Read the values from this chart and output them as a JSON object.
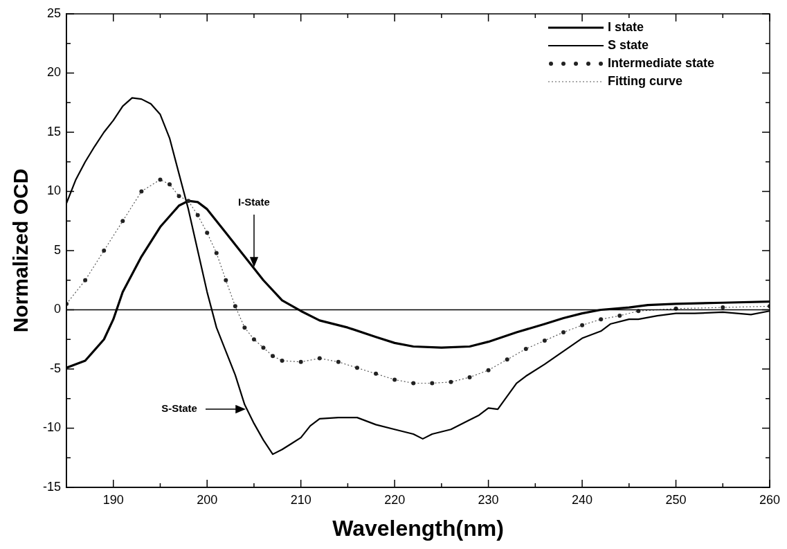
{
  "chart_data": {
    "type": "line",
    "xlabel": "Wavelength(nm)",
    "ylabel": "Normalized OCD",
    "xlim": [
      185,
      260
    ],
    "ylim": [
      -15,
      25
    ],
    "xticks": [
      {
        "value": 185,
        "label": null
      },
      190,
      {
        "value": 195,
        "label": null
      },
      200,
      {
        "value": 205,
        "label": null
      },
      210,
      {
        "value": 215,
        "label": null
      },
      220,
      {
        "value": 225,
        "label": null
      },
      230,
      {
        "value": 235,
        "label": null
      },
      240,
      {
        "value": 245,
        "label": null
      },
      250,
      {
        "value": 255,
        "label": null
      },
      260
    ],
    "yticks": [
      -15,
      {
        "value": -12.5,
        "label": null
      },
      -10,
      {
        "value": -7.5,
        "label": null
      },
      -5,
      {
        "value": -2.5,
        "label": null
      },
      0,
      {
        "value": 2.5,
        "label": null
      },
      5,
      {
        "value": 7.5,
        "label": null
      },
      10,
      {
        "value": 12.5,
        "label": null
      },
      15,
      {
        "value": 17.5,
        "label": null
      },
      20,
      {
        "value": 22.5,
        "label": null
      },
      25
    ],
    "grid": false,
    "legend": "top right",
    "ref_lines": [
      {
        "axis": "y",
        "value": 0,
        "color": "#000000"
      }
    ],
    "annotations": [
      {
        "text": "I-State",
        "x": 205,
        "y": 3.5
      },
      "S-State"
    ],
    "series": [
      {
        "name": "I state",
        "type": "line",
        "color": "#000000",
        "marker": "none",
        "line_style": "solid",
        "x": [
          185,
          187,
          189,
          190,
          191,
          193,
          195,
          197,
          198,
          199,
          200,
          202,
          204,
          206,
          208,
          210,
          212,
          215,
          218,
          220,
          222,
          225,
          228,
          230,
          233,
          236,
          238,
          240,
          242,
          245,
          247,
          250,
          255,
          260
        ],
        "values": [
          -4.9,
          -4.3,
          -2.5,
          -0.8,
          1.5,
          4.5,
          7,
          8.8,
          9.2,
          9.1,
          8.5,
          6.5,
          4.5,
          2.5,
          0.8,
          -0.1,
          -0.9,
          -1.5,
          -2.3,
          -2.8,
          -3.1,
          -3.2,
          -3.1,
          -2.7,
          -1.9,
          -1.2,
          -0.7,
          -0.3,
          0,
          0.2,
          0.4,
          0.5,
          0.6,
          0.7
        ]
      },
      {
        "name": "S state",
        "type": "line",
        "color": "#000000",
        "marker": "none",
        "line_style": "solid",
        "x": [
          185,
          186,
          187,
          188,
          189,
          190,
          191,
          192,
          193,
          194,
          195,
          196,
          197,
          198,
          199,
          200,
          201,
          202,
          203,
          204,
          205,
          206,
          207,
          208,
          209,
          210,
          211,
          212,
          214,
          216,
          218,
          220,
          222,
          223,
          224,
          226,
          228,
          229,
          230,
          231,
          232,
          233,
          234,
          236,
          238,
          240,
          242,
          243,
          245,
          246,
          248,
          250,
          252,
          255,
          258,
          260
        ],
        "values": [
          9,
          11,
          12.5,
          13.8,
          15,
          16,
          17.2,
          17.9,
          17.8,
          17.4,
          16.5,
          14.5,
          11.5,
          8.5,
          5,
          1.5,
          -1.5,
          -3.5,
          -5.5,
          -8,
          -9.6,
          -11,
          -12.2,
          -11.8,
          -11.3,
          -10.8,
          -9.8,
          -9.2,
          -9.1,
          -9.1,
          -9.7,
          -10.1,
          -10.5,
          -10.9,
          -10.5,
          -10.1,
          -9.3,
          -8.9,
          -8.3,
          -8.4,
          -7.3,
          -6.2,
          -5.6,
          -4.6,
          -3.5,
          -2.4,
          -1.8,
          -1.2,
          -0.8,
          -0.8,
          -0.5,
          -0.3,
          -0.3,
          -0.2,
          -0.4,
          -0.1
        ]
      },
      {
        "name": "Intermediate state",
        "type": "scatter",
        "color": "#222222",
        "marker": "circle",
        "x": [
          185,
          187,
          189,
          191,
          193,
          195,
          196,
          197,
          198,
          199,
          200,
          201,
          202,
          203,
          204,
          205,
          206,
          207,
          208,
          210,
          212,
          214,
          216,
          218,
          220,
          222,
          224,
          226,
          228,
          230,
          232,
          234,
          236,
          238,
          240,
          242,
          244,
          246,
          250,
          255,
          260
        ],
        "values": [
          0.5,
          2.5,
          5,
          7.5,
          10,
          11,
          10.6,
          9.6,
          9.2,
          8,
          6.5,
          4.8,
          2.5,
          0.3,
          -1.5,
          -2.5,
          -3.2,
          -3.9,
          -4.3,
          -4.4,
          -4.1,
          -4.4,
          -4.9,
          -5.4,
          -5.9,
          -6.2,
          -6.2,
          -6.1,
          -5.7,
          -5.1,
          -4.2,
          -3.3,
          -2.6,
          -1.9,
          -1.3,
          -0.8,
          -0.5,
          -0.1,
          0.1,
          0.2,
          0.3
        ]
      },
      {
        "name": "Fitting curve",
        "type": "line",
        "color": "#555555",
        "marker": "none",
        "line_style": "dotted",
        "x": [
          185,
          187,
          189,
          191,
          193,
          195,
          196,
          197,
          198,
          199,
          200,
          201,
          202,
          203,
          204,
          205,
          206,
          207,
          208,
          210,
          212,
          214,
          216,
          218,
          220,
          222,
          224,
          226,
          228,
          230,
          232,
          234,
          236,
          238,
          240,
          242,
          244,
          246,
          250,
          255,
          260
        ],
        "values": [
          0.5,
          2.5,
          5,
          7.5,
          10,
          11,
          10.6,
          9.6,
          9.2,
          8,
          6.5,
          4.8,
          2.5,
          0.3,
          -1.5,
          -2.5,
          -3.2,
          -3.9,
          -4.3,
          -4.4,
          -4.1,
          -4.4,
          -4.9,
          -5.4,
          -5.9,
          -6.2,
          -6.2,
          -6.1,
          -5.7,
          -5.1,
          -4.2,
          -3.3,
          -2.6,
          -1.9,
          -1.3,
          -0.8,
          -0.5,
          -0.1,
          0.1,
          0.2,
          0.3
        ]
      }
    ]
  }
}
